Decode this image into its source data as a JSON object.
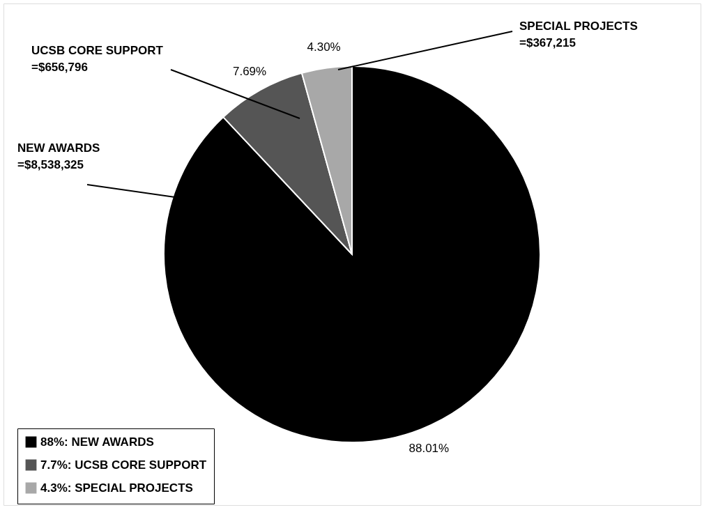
{
  "chart_data": {
    "type": "pie",
    "categories": [
      "88%: NEW AWARDS",
      "7.7%: UCSB CORE SUPPORT",
      "4.3%: SPECIAL PROJECTS"
    ],
    "values": [
      88.01,
      7.69,
      4.3
    ],
    "value_labels": [
      "88.01%",
      "7.69%",
      "4.30%"
    ],
    "colors": [
      "#000000",
      "#555555",
      "#a8a8a8"
    ],
    "annotations": [
      "NEW AWARDS\n=$8,538,325",
      "UCSB CORE SUPPORT\n=$656,796",
      "SPECIAL PROJECTS\n=$367,215"
    ],
    "legend": "bottom left"
  }
}
